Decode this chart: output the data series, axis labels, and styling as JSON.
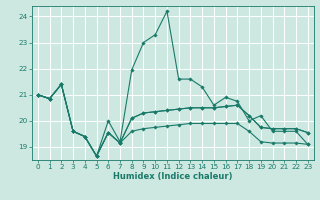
{
  "xlabel": "Humidex (Indice chaleur)",
  "bg_color": "#cce8e0",
  "grid_color": "#ffffff",
  "line_color": "#1a7a6a",
  "series": [
    [
      21.0,
      20.85,
      null,
      null,
      null,
      null,
      null,
      null,
      null,
      null,
      null,
      null,
      null,
      null,
      null,
      null,
      null,
      null,
      null,
      null,
      null,
      null,
      null,
      null
    ],
    [
      21.0,
      20.85,
      21.4,
      19.6,
      19.4,
      18.65,
      19.55,
      19.15,
      20.1,
      20.3,
      20.35,
      20.4,
      20.45,
      20.5,
      20.5,
      20.5,
      20.55,
      20.6,
      20.2,
      19.75,
      19.7,
      19.7,
      19.7,
      19.55
    ],
    [
      21.0,
      20.85,
      21.4,
      19.6,
      19.4,
      18.65,
      19.55,
      19.15,
      20.1,
      20.3,
      20.35,
      20.4,
      20.45,
      20.5,
      20.5,
      20.5,
      20.55,
      20.6,
      20.2,
      19.75,
      19.7,
      19.7,
      19.7,
      19.55
    ],
    [
      21.0,
      20.85,
      21.4,
      19.6,
      19.4,
      18.65,
      19.55,
      19.15,
      19.6,
      19.7,
      19.75,
      19.8,
      19.85,
      19.9,
      19.9,
      19.9,
      19.9,
      19.9,
      19.6,
      19.2,
      19.15,
      19.15,
      19.15,
      19.1
    ],
    [
      21.0,
      20.85,
      21.4,
      19.6,
      19.4,
      18.65,
      20.0,
      19.2,
      21.95,
      23.0,
      23.3,
      24.2,
      21.6,
      21.6,
      21.3,
      20.6,
      20.9,
      20.75,
      20.0,
      20.2,
      19.6,
      19.6,
      19.6,
      19.1
    ]
  ],
  "xlim": [
    0,
    23
  ],
  "ylim": [
    18.5,
    24.4
  ],
  "yticks": [
    19,
    20,
    21,
    22,
    23,
    24
  ],
  "xticks": [
    0,
    1,
    2,
    3,
    4,
    5,
    6,
    7,
    8,
    9,
    10,
    11,
    12,
    13,
    14,
    15,
    16,
    17,
    18,
    19,
    20,
    21,
    22,
    23
  ],
  "xlabel_fontsize": 6.0,
  "tick_fontsize": 5.2,
  "figsize": [
    3.2,
    2.0
  ],
  "dpi": 100
}
